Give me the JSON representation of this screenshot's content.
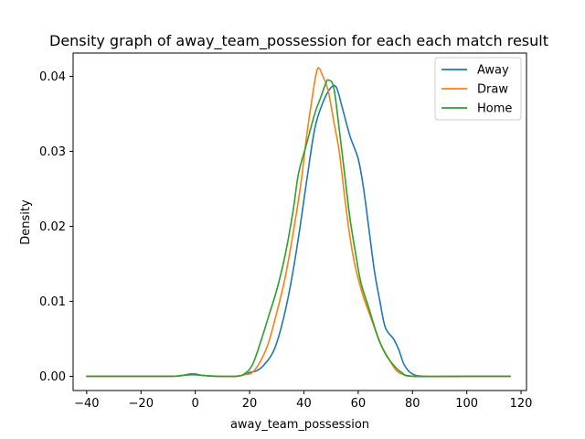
{
  "chart_data": {
    "type": "line",
    "title": "Density graph of away_team_possession for each each match result",
    "xlabel": "away_team_possession",
    "ylabel": "Density",
    "xlim": [
      -45,
      122
    ],
    "ylim": [
      -0.0019,
      0.0431
    ],
    "xticks": [
      -40,
      -20,
      0,
      20,
      40,
      60,
      80,
      100,
      120
    ],
    "xtick_labels": [
      "−40",
      "−20",
      "0",
      "20",
      "40",
      "60",
      "80",
      "100",
      "120"
    ],
    "yticks": [
      0.0,
      0.01,
      0.02,
      0.03,
      0.04
    ],
    "ytick_labels": [
      "0.00",
      "0.01",
      "0.02",
      "0.03",
      "0.04"
    ],
    "grid": false,
    "legend_position": "top-right",
    "series": [
      {
        "name": "Away",
        "color": "#1f77b4",
        "points": [
          [
            -40,
            0
          ],
          [
            -10,
            0
          ],
          [
            -5,
            0.0001
          ],
          [
            -2,
            0.0002
          ],
          [
            0,
            0.0002
          ],
          [
            3,
            0.0001
          ],
          [
            8,
            0
          ],
          [
            15,
            0
          ],
          [
            18,
            0.0002
          ],
          [
            20,
            0.0005
          ],
          [
            23,
            0.0008
          ],
          [
            26,
            0.0018
          ],
          [
            29,
            0.0035
          ],
          [
            32,
            0.007
          ],
          [
            35,
            0.012
          ],
          [
            38,
            0.0185
          ],
          [
            41,
            0.026
          ],
          [
            44,
            0.033
          ],
          [
            47,
            0.0365
          ],
          [
            50,
            0.0385
          ],
          [
            52,
            0.0385
          ],
          [
            54,
            0.036
          ],
          [
            57,
            0.032
          ],
          [
            60,
            0.029
          ],
          [
            62,
            0.025
          ],
          [
            64,
            0.0195
          ],
          [
            66,
            0.014
          ],
          [
            68,
            0.01
          ],
          [
            70,
            0.0065
          ],
          [
            73,
            0.005
          ],
          [
            75,
            0.0035
          ],
          [
            77,
            0.0015
          ],
          [
            80,
            0.0003
          ],
          [
            85,
            0
          ],
          [
            100,
            0
          ],
          [
            116,
            0
          ]
        ]
      },
      {
        "name": "Draw",
        "color": "#ff7f0e",
        "points": [
          [
            -40,
            0
          ],
          [
            -10,
            0
          ],
          [
            -5,
            0.0001
          ],
          [
            -2,
            0.0003
          ],
          [
            0,
            0.0003
          ],
          [
            3,
            0.0001
          ],
          [
            8,
            0
          ],
          [
            15,
            0
          ],
          [
            18,
            0.0002
          ],
          [
            21,
            0.0005
          ],
          [
            24,
            0.002
          ],
          [
            27,
            0.0045
          ],
          [
            30,
            0.0085
          ],
          [
            33,
            0.013
          ],
          [
            36,
            0.019
          ],
          [
            39,
            0.026
          ],
          [
            41,
            0.032
          ],
          [
            43,
            0.037
          ],
          [
            45,
            0.041
          ],
          [
            47,
            0.04
          ],
          [
            49,
            0.038
          ],
          [
            51,
            0.034
          ],
          [
            53,
            0.03
          ],
          [
            55,
            0.024
          ],
          [
            57,
            0.0185
          ],
          [
            59,
            0.0145
          ],
          [
            62,
            0.0105
          ],
          [
            65,
            0.0075
          ],
          [
            68,
            0.0045
          ],
          [
            71,
            0.0025
          ],
          [
            74,
            0.0008
          ],
          [
            77,
            0.0002
          ],
          [
            82,
            0
          ],
          [
            100,
            0
          ],
          [
            116,
            0
          ]
        ]
      },
      {
        "name": "Home",
        "color": "#2ca02c",
        "points": [
          [
            -40,
            0
          ],
          [
            -10,
            0
          ],
          [
            -5,
            0.0001
          ],
          [
            -2,
            0.0003
          ],
          [
            0,
            0.0003
          ],
          [
            3,
            0.0001
          ],
          [
            8,
            0
          ],
          [
            15,
            0
          ],
          [
            18,
            0.0003
          ],
          [
            21,
            0.0015
          ],
          [
            24,
            0.0045
          ],
          [
            27,
            0.008
          ],
          [
            30,
            0.0115
          ],
          [
            33,
            0.016
          ],
          [
            36,
            0.022
          ],
          [
            38,
            0.027
          ],
          [
            41,
            0.031
          ],
          [
            44,
            0.035
          ],
          [
            46,
            0.037
          ],
          [
            48,
            0.039
          ],
          [
            49,
            0.0395
          ],
          [
            51,
            0.0385
          ],
          [
            53,
            0.033
          ],
          [
            55,
            0.027
          ],
          [
            57,
            0.021
          ],
          [
            59,
            0.0165
          ],
          [
            61,
            0.0125
          ],
          [
            64,
            0.009
          ],
          [
            67,
            0.0055
          ],
          [
            70,
            0.003
          ],
          [
            73,
            0.0015
          ],
          [
            76,
            0.0005
          ],
          [
            80,
            0
          ],
          [
            100,
            0
          ],
          [
            116,
            0
          ]
        ]
      }
    ]
  }
}
